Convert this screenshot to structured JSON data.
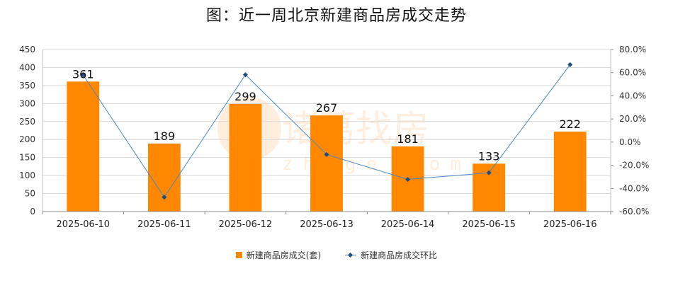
{
  "title": "图：近一周北京新建商品房成交走势",
  "chart_data": {
    "type": "bar",
    "categories": [
      "2025-06-10",
      "2025-06-11",
      "2025-06-12",
      "2025-06-13",
      "2025-06-14",
      "2025-06-15",
      "2025-06-16"
    ],
    "series": [
      {
        "name": "新建商品房成交(套)",
        "type": "bar",
        "axis": "left",
        "color": "#ff8800",
        "values": [
          361,
          189,
          299,
          267,
          181,
          133,
          222
        ]
      },
      {
        "name": "新建商品房成交环比",
        "type": "line",
        "axis": "right",
        "color": "#4a86c5",
        "values": [
          58.0,
          -47.6,
          58.2,
          -10.7,
          -32.2,
          -26.5,
          66.9
        ]
      }
    ],
    "ylim_left": [
      0,
      450
    ],
    "yticks_left": [
      "0",
      "50",
      "100",
      "150",
      "200",
      "250",
      "300",
      "350",
      "400",
      "450"
    ],
    "ylim_right": [
      -60,
      80
    ],
    "yticks_right": [
      "-60.0%",
      "-40.0%",
      "-20.0%",
      "0.0%",
      "20.0%",
      "40.0%",
      "60.0%",
      "80.0%"
    ],
    "grid": true,
    "legend_position": "bottom"
  },
  "watermark": {
    "text": "诸葛找房",
    "subtext": "zhuge.com"
  }
}
